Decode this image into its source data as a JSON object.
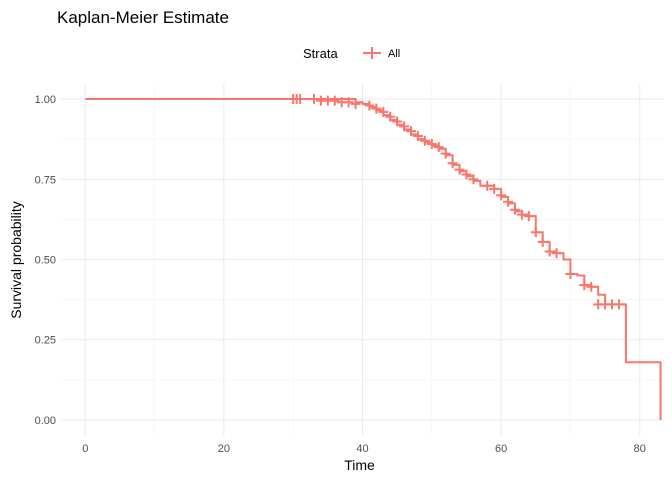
{
  "chart_data": {
    "type": "line",
    "title": "Kaplan-Meier Estimate",
    "xlabel": "Time",
    "ylabel": "Survival probability",
    "xlim": [
      -3.5,
      83.5
    ],
    "ylim": [
      -0.05,
      1.05
    ],
    "x_ticks": [
      0,
      20,
      40,
      60,
      80
    ],
    "x_tick_labels": [
      "0",
      "20",
      "40",
      "60",
      "80"
    ],
    "y_ticks": [
      0,
      0.25,
      0.5,
      0.75,
      1
    ],
    "y_tick_labels": [
      "0.00",
      "0.25",
      "0.50",
      "0.75",
      "1.00"
    ],
    "grid": true,
    "legend": {
      "title": "Strata",
      "position": "top"
    },
    "series": [
      {
        "name": "All",
        "color": "#F8766D",
        "steps": [
          [
            0,
            1.0
          ],
          [
            39,
            0.99
          ],
          [
            40,
            0.985
          ],
          [
            41,
            0.975
          ],
          [
            42,
            0.965
          ],
          [
            43,
            0.95
          ],
          [
            44,
            0.935
          ],
          [
            45,
            0.92
          ],
          [
            46,
            0.905
          ],
          [
            47,
            0.89
          ],
          [
            48,
            0.875
          ],
          [
            49,
            0.865
          ],
          [
            50,
            0.855
          ],
          [
            51,
            0.845
          ],
          [
            52,
            0.825
          ],
          [
            53,
            0.795
          ],
          [
            54,
            0.775
          ],
          [
            55,
            0.76
          ],
          [
            56,
            0.745
          ],
          [
            57,
            0.73
          ],
          [
            59,
            0.72
          ],
          [
            60,
            0.695
          ],
          [
            61,
            0.675
          ],
          [
            62,
            0.65
          ],
          [
            63,
            0.64
          ],
          [
            64,
            0.635
          ],
          [
            65,
            0.585
          ],
          [
            66,
            0.555
          ],
          [
            67,
            0.525
          ],
          [
            68,
            0.52
          ],
          [
            69,
            0.5
          ],
          [
            70,
            0.455
          ],
          [
            71,
            0.45
          ],
          [
            72,
            0.42
          ],
          [
            73,
            0.415
          ],
          [
            74,
            0.39
          ],
          [
            75,
            0.36
          ],
          [
            78,
            0.18
          ],
          [
            83,
            0.0
          ]
        ],
        "censored": [
          [
            30,
            1.0
          ],
          [
            30.5,
            1.0
          ],
          [
            31,
            1.0
          ],
          [
            33,
            1.0
          ],
          [
            34,
            0.995
          ],
          [
            35,
            0.995
          ],
          [
            36,
            0.995
          ],
          [
            37,
            0.99
          ],
          [
            38,
            0.99
          ],
          [
            39,
            0.985
          ],
          [
            41,
            0.98
          ],
          [
            42,
            0.97
          ],
          [
            43,
            0.96
          ],
          [
            44,
            0.945
          ],
          [
            45,
            0.93
          ],
          [
            46,
            0.915
          ],
          [
            47,
            0.9
          ],
          [
            48,
            0.885
          ],
          [
            49,
            0.87
          ],
          [
            50,
            0.86
          ],
          [
            51,
            0.85
          ],
          [
            52,
            0.83
          ],
          [
            53,
            0.8
          ],
          [
            54,
            0.78
          ],
          [
            55,
            0.765
          ],
          [
            56,
            0.75
          ],
          [
            58,
            0.73
          ],
          [
            59,
            0.72
          ],
          [
            60,
            0.7
          ],
          [
            61,
            0.68
          ],
          [
            62,
            0.655
          ],
          [
            63,
            0.64
          ],
          [
            64,
            0.635
          ],
          [
            65,
            0.585
          ],
          [
            66,
            0.555
          ],
          [
            67,
            0.525
          ],
          [
            68,
            0.52
          ],
          [
            70,
            0.455
          ],
          [
            72,
            0.42
          ],
          [
            73,
            0.415
          ],
          [
            74,
            0.36
          ],
          [
            75,
            0.36
          ],
          [
            76,
            0.36
          ],
          [
            77,
            0.36
          ]
        ]
      }
    ]
  }
}
